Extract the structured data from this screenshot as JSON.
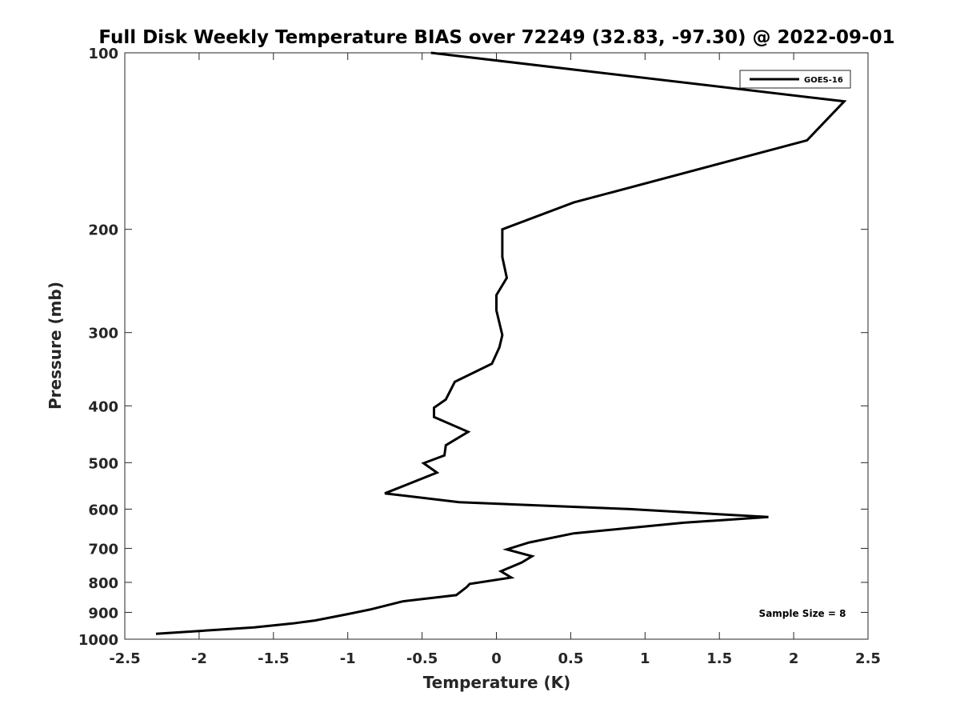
{
  "chart_data": {
    "type": "line",
    "title": "Full Disk Weekly Temperature BIAS over 72249 (32.83, -97.30) @ 2022-09-01",
    "xlabel": "Temperature (K)",
    "ylabel": "Pressure (mb)",
    "xlim": [
      -2.5,
      2.5
    ],
    "ylim": [
      100,
      1000
    ],
    "y_scale": "log",
    "y_reversed": true,
    "x_ticks": [
      -2.5,
      -2,
      -1.5,
      -1,
      -0.5,
      0,
      0.5,
      1,
      1.5,
      2,
      2.5
    ],
    "x_tick_labels": [
      "-2.5",
      "-2",
      "-1.5",
      "-1",
      "-0.5",
      "0",
      "0.5",
      "1",
      "1.5",
      "2",
      "2.5"
    ],
    "y_ticks": [
      100,
      200,
      300,
      400,
      500,
      600,
      700,
      800,
      900,
      1000
    ],
    "y_tick_labels": [
      "100",
      "200",
      "300",
      "400",
      "500",
      "600",
      "700",
      "800",
      "900",
      "1000"
    ],
    "grid": false,
    "legend_position": "top-right",
    "annotation": "Sample Size = 8",
    "series": [
      {
        "name": "GOES-16",
        "color": "#000000",
        "points": [
          {
            "x": -0.44,
            "y": 100
          },
          {
            "x": 2.34,
            "y": 121
          },
          {
            "x": 2.09,
            "y": 141
          },
          {
            "x": 0.52,
            "y": 180
          },
          {
            "x": 0.04,
            "y": 200
          },
          {
            "x": 0.04,
            "y": 223
          },
          {
            "x": 0.07,
            "y": 242
          },
          {
            "x": 0.0,
            "y": 259
          },
          {
            "x": 0.0,
            "y": 275
          },
          {
            "x": 0.04,
            "y": 303
          },
          {
            "x": 0.02,
            "y": 318
          },
          {
            "x": -0.03,
            "y": 339
          },
          {
            "x": -0.28,
            "y": 364
          },
          {
            "x": -0.34,
            "y": 390
          },
          {
            "x": -0.42,
            "y": 403
          },
          {
            "x": -0.42,
            "y": 418
          },
          {
            "x": -0.19,
            "y": 443
          },
          {
            "x": -0.34,
            "y": 467
          },
          {
            "x": -0.35,
            "y": 486
          },
          {
            "x": -0.49,
            "y": 501
          },
          {
            "x": -0.4,
            "y": 520
          },
          {
            "x": -0.75,
            "y": 564
          },
          {
            "x": -0.25,
            "y": 584
          },
          {
            "x": 0.9,
            "y": 600
          },
          {
            "x": 1.83,
            "y": 619
          },
          {
            "x": 1.26,
            "y": 633
          },
          {
            "x": 0.52,
            "y": 660
          },
          {
            "x": 0.22,
            "y": 684
          },
          {
            "x": 0.07,
            "y": 703
          },
          {
            "x": 0.24,
            "y": 722
          },
          {
            "x": 0.17,
            "y": 740
          },
          {
            "x": 0.03,
            "y": 766
          },
          {
            "x": 0.1,
            "y": 785
          },
          {
            "x": -0.18,
            "y": 805
          },
          {
            "x": -0.2,
            "y": 815
          },
          {
            "x": -0.27,
            "y": 841
          },
          {
            "x": -0.63,
            "y": 862
          },
          {
            "x": -0.85,
            "y": 890
          },
          {
            "x": -1.0,
            "y": 906
          },
          {
            "x": -1.22,
            "y": 929
          },
          {
            "x": -1.37,
            "y": 940
          },
          {
            "x": -1.63,
            "y": 955
          },
          {
            "x": -2.29,
            "y": 979
          }
        ]
      }
    ]
  }
}
